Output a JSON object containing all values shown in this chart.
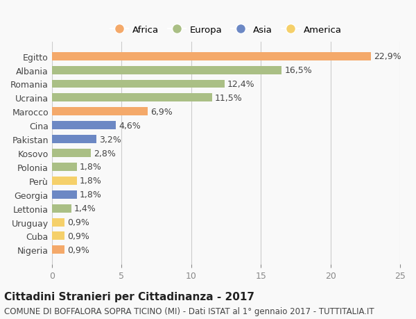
{
  "countries": [
    "Egitto",
    "Albania",
    "Romania",
    "Ucraina",
    "Marocco",
    "Cina",
    "Pakistan",
    "Kosovo",
    "Polonia",
    "Perù",
    "Georgia",
    "Lettonia",
    "Uruguay",
    "Cuba",
    "Nigeria"
  ],
  "values": [
    22.9,
    16.5,
    12.4,
    11.5,
    6.9,
    4.6,
    3.2,
    2.8,
    1.8,
    1.8,
    1.8,
    1.4,
    0.9,
    0.9,
    0.9
  ],
  "labels": [
    "22,9%",
    "16,5%",
    "12,4%",
    "11,5%",
    "6,9%",
    "4,6%",
    "3,2%",
    "2,8%",
    "1,8%",
    "1,8%",
    "1,8%",
    "1,4%",
    "0,9%",
    "0,9%",
    "0,9%"
  ],
  "continents": [
    "Africa",
    "Europa",
    "Europa",
    "Europa",
    "Africa",
    "Asia",
    "Asia",
    "Europa",
    "Europa",
    "America",
    "Asia",
    "Europa",
    "America",
    "America",
    "Africa"
  ],
  "colors": {
    "Africa": "#F4A96A",
    "Europa": "#AABF85",
    "Asia": "#6C88C4",
    "America": "#F5D06A"
  },
  "legend_order": [
    "Africa",
    "Europa",
    "Asia",
    "America"
  ],
  "xlim": [
    0,
    25
  ],
  "xticks": [
    0,
    5,
    10,
    15,
    20,
    25
  ],
  "title": "Cittadini Stranieri per Cittadinanza - 2017",
  "subtitle": "COMUNE DI BOFFALORA SOPRA TICINO (MI) - Dati ISTAT al 1° gennaio 2017 - TUTTITALIA.IT",
  "background_color": "#f9f9f9",
  "bar_height": 0.6,
  "label_fontsize": 9,
  "tick_fontsize": 9,
  "title_fontsize": 11,
  "subtitle_fontsize": 8.5
}
